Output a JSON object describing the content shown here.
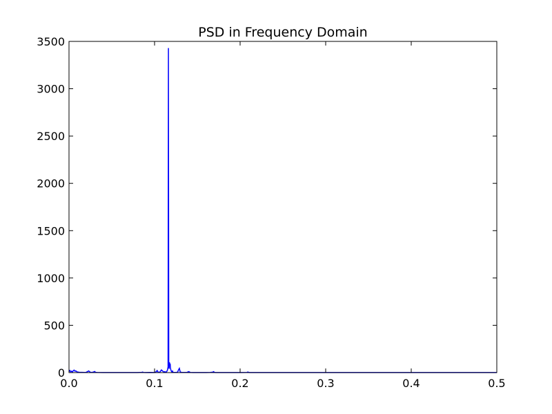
{
  "colors": {
    "series": "#0000ff",
    "axes": "#000000",
    "background": "#ffffff"
  },
  "chart_data": {
    "type": "line",
    "title": "PSD in Frequency Domain",
    "xlabel": "",
    "ylabel": "",
    "xlim": [
      0.0,
      0.5
    ],
    "ylim": [
      0,
      3500
    ],
    "grid": false,
    "legend": "none",
    "x_ticks": [
      0.0,
      0.1,
      0.2,
      0.3,
      0.4,
      0.5
    ],
    "x_tick_labels": [
      "0.0",
      "0.1",
      "0.2",
      "0.3",
      "0.4",
      "0.5"
    ],
    "y_ticks": [
      0,
      500,
      1000,
      1500,
      2000,
      2500,
      3000,
      3500
    ],
    "y_tick_labels": [
      "0",
      "500",
      "1000",
      "1500",
      "2000",
      "2500",
      "3000",
      "3500"
    ],
    "series": [
      {
        "x": [
          0.0,
          0.001,
          0.002,
          0.003,
          0.004,
          0.005,
          0.006,
          0.007,
          0.008,
          0.009,
          0.01,
          0.012,
          0.015,
          0.018,
          0.02,
          0.022,
          0.023,
          0.024,
          0.025,
          0.027,
          0.029,
          0.03,
          0.031,
          0.033,
          0.04,
          0.05,
          0.06,
          0.07,
          0.08,
          0.085,
          0.086,
          0.087,
          0.09,
          0.095,
          0.1,
          0.102,
          0.103,
          0.104,
          0.106,
          0.107,
          0.108,
          0.11,
          0.111,
          0.112,
          0.113,
          0.114,
          0.115,
          0.1158,
          0.1162,
          0.1166,
          0.117,
          0.1174,
          0.1178,
          0.1182,
          0.1186,
          0.119,
          0.1194,
          0.1198,
          0.1202,
          0.1206,
          0.121,
          0.1215,
          0.122,
          0.123,
          0.125,
          0.127,
          0.128,
          0.129,
          0.13,
          0.132,
          0.135,
          0.138,
          0.14,
          0.141,
          0.142,
          0.145,
          0.15,
          0.155,
          0.16,
          0.165,
          0.168,
          0.169,
          0.17,
          0.171,
          0.173,
          0.18,
          0.19,
          0.2,
          0.208,
          0.209,
          0.21,
          0.211,
          0.213,
          0.22,
          0.23,
          0.25,
          0.28,
          0.3,
          0.35,
          0.4,
          0.45,
          0.5
        ],
        "y": [
          10,
          22,
          8,
          15,
          5,
          20,
          26,
          15,
          18,
          10,
          6,
          4,
          3,
          2,
          3,
          12,
          18,
          10,
          4,
          2,
          8,
          12,
          3,
          2,
          1,
          1,
          1,
          1,
          1,
          3,
          5,
          2,
          1,
          2,
          1,
          10,
          22,
          6,
          3,
          15,
          28,
          12,
          6,
          10,
          5,
          8,
          25,
          60,
          3430,
          90,
          40,
          110,
          70,
          95,
          50,
          30,
          20,
          12,
          8,
          5,
          15,
          4,
          2,
          2,
          2,
          5,
          30,
          45,
          6,
          2,
          2,
          3,
          10,
          5,
          2,
          1,
          1,
          1,
          1,
          2,
          5,
          10,
          3,
          1,
          1,
          1,
          1,
          1,
          2,
          6,
          3,
          1,
          1,
          1,
          1,
          1,
          1,
          1,
          1,
          1,
          1,
          1
        ]
      }
    ]
  }
}
